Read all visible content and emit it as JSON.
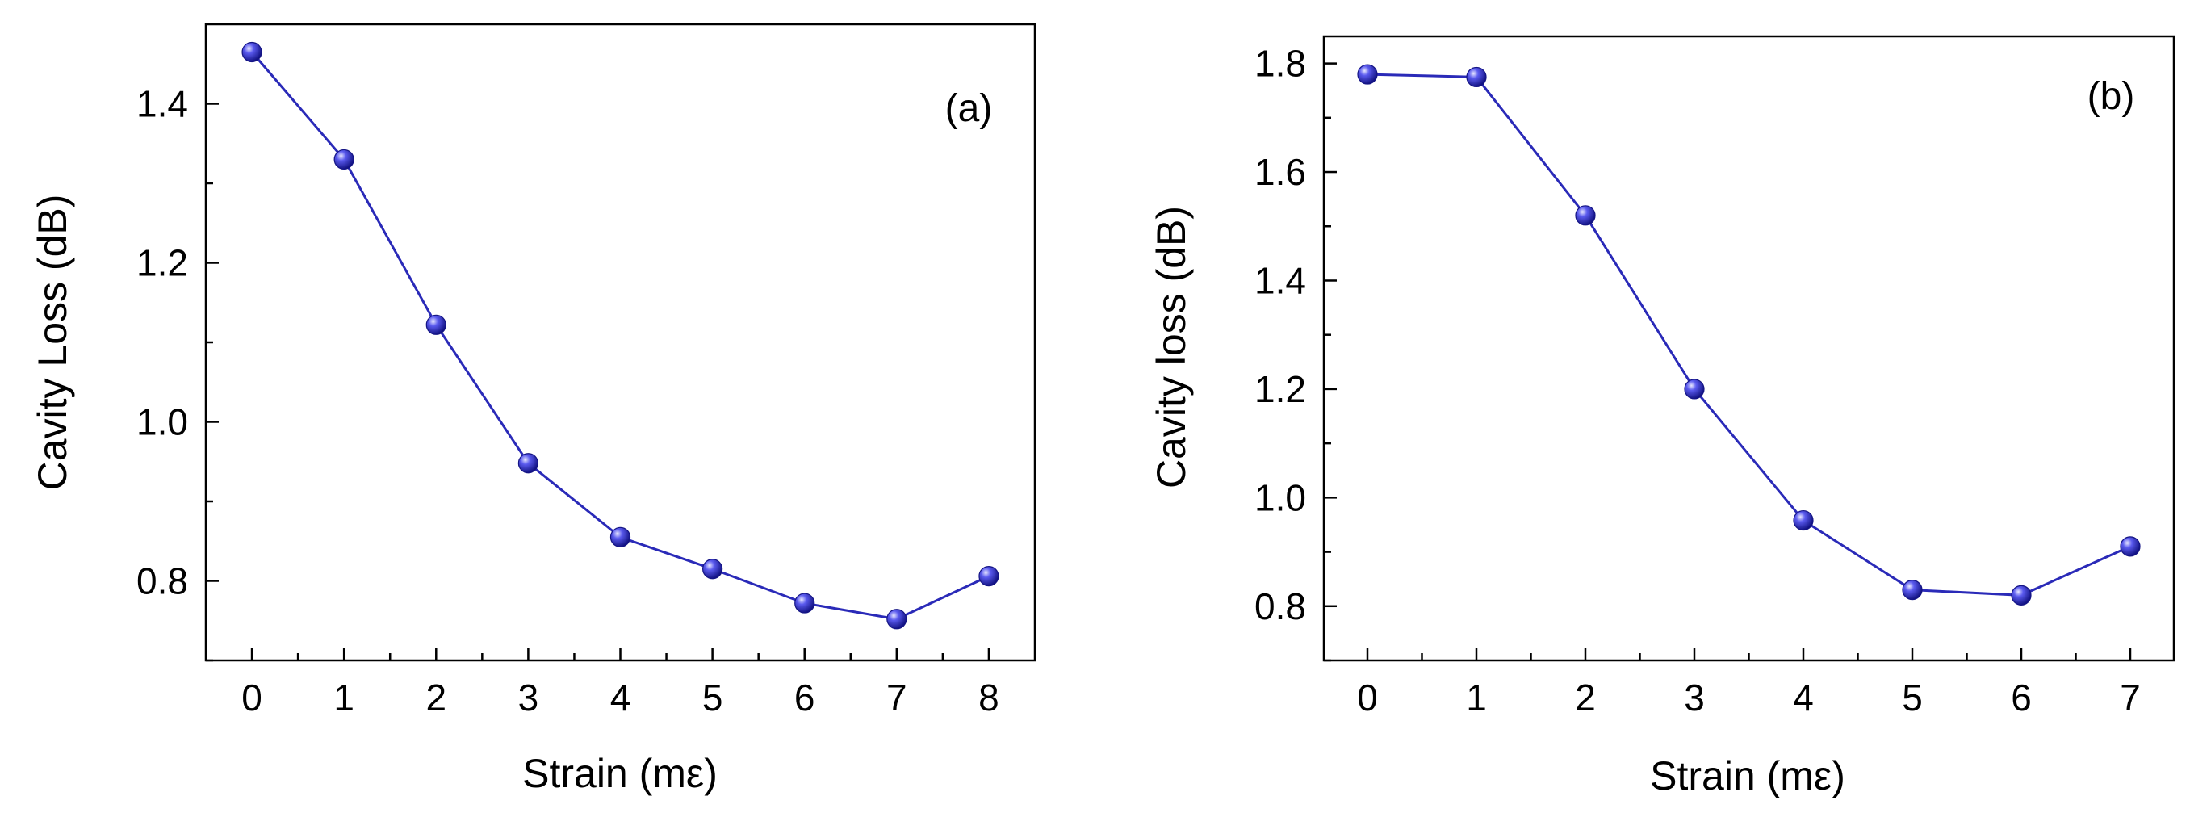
{
  "chart_data": [
    {
      "type": "line",
      "panel_label": "(a)",
      "title": "",
      "xlabel": "Strain (mε)",
      "ylabel": "Cavity Loss (dB)",
      "x": [
        0,
        1,
        2,
        3,
        4,
        5,
        6,
        7,
        8
      ],
      "series": [
        {
          "name": "Cavity Loss",
          "values": [
            1.465,
            1.33,
            1.122,
            0.948,
            0.855,
            0.815,
            0.772,
            0.752,
            0.806
          ]
        }
      ],
      "xlim": [
        -0.5,
        8.5
      ],
      "ylim": [
        0.7,
        1.5
      ],
      "xticks": [
        0,
        1,
        2,
        3,
        4,
        5,
        6,
        7,
        8
      ],
      "yticks": [
        0.8,
        1.0,
        1.2,
        1.4
      ],
      "ytick_labels": [
        "0.8",
        "1.0",
        "1.2",
        "1.4"
      ],
      "color": "#2a2ab8",
      "marker_color": "#3030d0"
    },
    {
      "type": "line",
      "panel_label": "(b)",
      "title": "",
      "xlabel": "Strain (mε)",
      "ylabel": "Cavity loss (dB)",
      "x": [
        0,
        1,
        2,
        3,
        4,
        5,
        6,
        7
      ],
      "series": [
        {
          "name": "Cavity loss",
          "values": [
            1.78,
            1.775,
            1.52,
            1.2,
            0.958,
            0.83,
            0.82,
            0.91
          ]
        }
      ],
      "xlim": [
        -0.4,
        7.4
      ],
      "ylim": [
        0.7,
        1.85
      ],
      "xticks": [
        0,
        1,
        2,
        3,
        4,
        5,
        6,
        7
      ],
      "yticks": [
        0.8,
        1.0,
        1.2,
        1.4,
        1.6,
        1.8
      ],
      "ytick_labels": [
        "0.8",
        "1.0",
        "1.2",
        "1.4",
        "1.6",
        "1.8"
      ],
      "color": "#2a2ab8",
      "marker_color": "#3030d0"
    }
  ]
}
